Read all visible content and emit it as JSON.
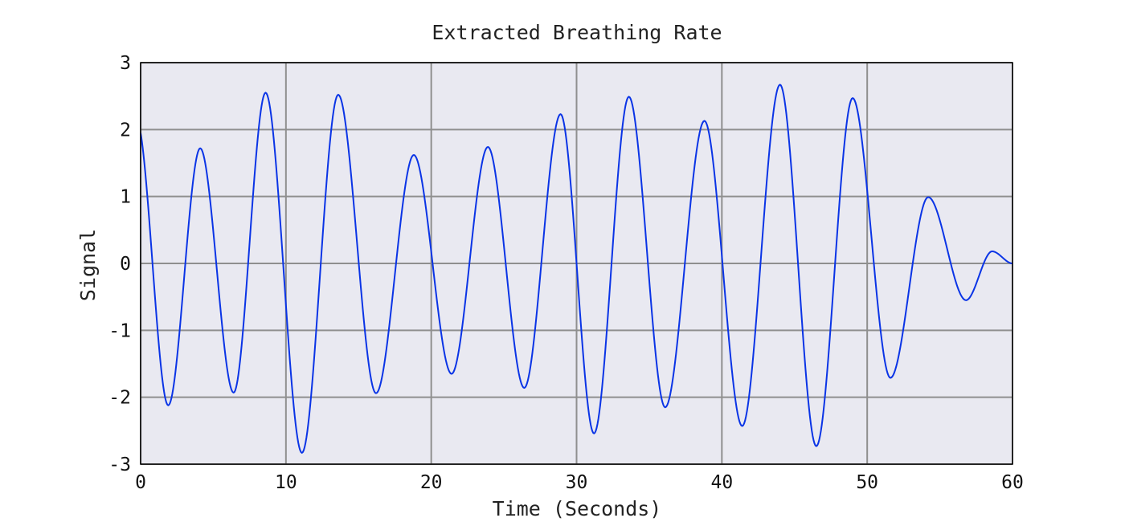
{
  "chart_data": {
    "type": "line",
    "title": "Extracted Breathing Rate",
    "xlabel": "Time (Seconds)",
    "ylabel": "Signal",
    "xlim": [
      0,
      60
    ],
    "ylim": [
      -3,
      3
    ],
    "xticks": [
      0,
      10,
      20,
      30,
      40,
      50,
      60
    ],
    "yticks": [
      3,
      2,
      1,
      0,
      -1,
      -2,
      -3
    ],
    "xtick_labels": [
      "0",
      "10",
      "20",
      "30",
      "40",
      "50",
      "60"
    ],
    "ytick_labels": [
      "3",
      "2",
      "1",
      "0",
      "-1",
      "-2",
      "-3"
    ],
    "grid": true,
    "legend": "none",
    "colors": {
      "line": "#0a34e6",
      "plot_bg": "#e9e9f1",
      "grid": "#8f8f8f",
      "frame": "#000000"
    },
    "series": [
      {
        "x": [
          0.0,
          1.9,
          4.1,
          6.4,
          8.6,
          11.1,
          13.6,
          16.2,
          18.8,
          21.4,
          23.9,
          26.4,
          28.9,
          31.2,
          33.6,
          36.1,
          38.8,
          41.4,
          44.0,
          46.5,
          49.0,
          51.6,
          54.2,
          56.8,
          58.6,
          60.0
        ],
        "y": [
          1.95,
          -2.12,
          1.72,
          -1.93,
          2.55,
          -2.83,
          2.52,
          -1.94,
          1.62,
          -1.65,
          1.74,
          -1.86,
          2.23,
          -2.54,
          2.49,
          -2.15,
          2.13,
          -2.43,
          2.67,
          -2.73,
          2.47,
          -1.71,
          0.99,
          -0.55,
          0.18,
          0.0
        ]
      }
    ]
  }
}
